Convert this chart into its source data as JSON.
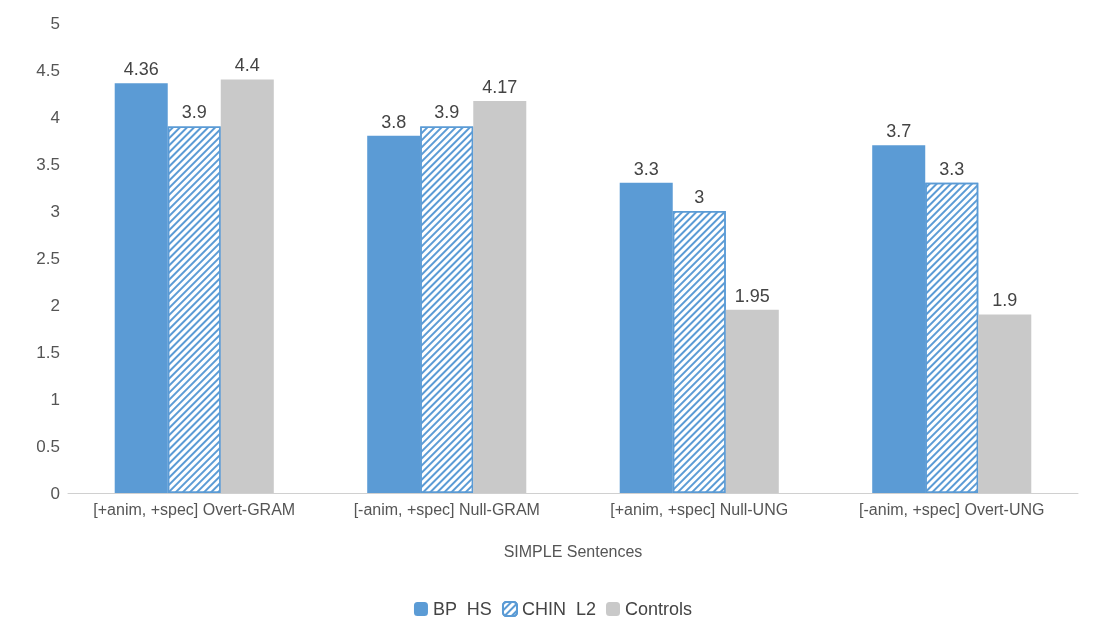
{
  "chart_data": {
    "type": "bar",
    "xlabel": "SIMPLE Sentences",
    "categories": [
      "[+anim, +spec] Overt-GRAM",
      "[-anim, +spec] Null-GRAM",
      "[+anim, +spec] Null-UNG",
      "[-anim, +spec] Overt-UNG"
    ],
    "series": [
      {
        "name": "BP  HS",
        "color": "#5b9bd5",
        "values": [
          4.36,
          3.8,
          3.3,
          3.7
        ]
      },
      {
        "name": "CHIN  L2",
        "color": "#5b9bd5",
        "values": [
          3.9,
          3.9,
          3,
          3.3
        ]
      },
      {
        "name": "Controls",
        "color": "#c9c9c9",
        "values": [
          4.4,
          4.17,
          1.95,
          1.9
        ]
      }
    ],
    "ylim": [
      0,
      5
    ],
    "yticks": [
      0,
      0.5,
      1,
      1.5,
      2,
      2.5,
      3,
      3.5,
      4,
      4.5,
      5
    ],
    "grid": false,
    "legend": "bottom",
    "data_labels": true
  }
}
